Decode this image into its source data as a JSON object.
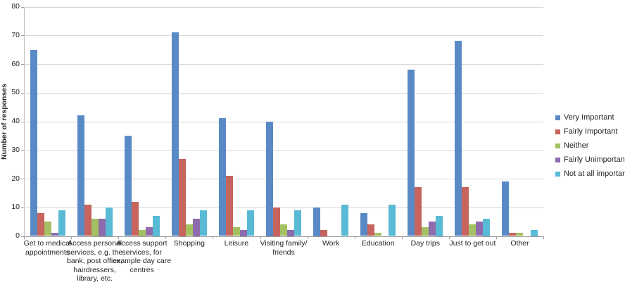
{
  "chart_data": {
    "type": "bar",
    "title": "",
    "ylabel": "Number of responses",
    "xlabel": "",
    "ylim": [
      0,
      80
    ],
    "ytick_step": 10,
    "grid": true,
    "legend_position": "right",
    "categories": [
      "Get to medical appointments",
      "Access personal services, e.g. the bank, post office, hairdressers, library, etc.",
      "Access support services, for example day care centres",
      "Shopping",
      "Leisure",
      "Visiting family/ friends",
      "Work",
      "Education",
      "Day trips",
      "Just to get out",
      "Other"
    ],
    "series": [
      {
        "name": "Very Important",
        "color": "#5a8ac6",
        "values": [
          65,
          42,
          35,
          71,
          41,
          40,
          10,
          8,
          58,
          68,
          19
        ]
      },
      {
        "name": "Fairly Important",
        "color": "#c6645d",
        "values": [
          8,
          11,
          12,
          27,
          21,
          10,
          2,
          4,
          17,
          17,
          1
        ]
      },
      {
        "name": "Neither",
        "color": "#a3c163",
        "values": [
          5,
          6,
          2,
          4,
          3,
          4,
          0,
          1,
          3,
          4,
          1
        ]
      },
      {
        "name": "Fairly Unimportant",
        "color": "#8e6bac",
        "values": [
          1,
          6,
          3,
          6,
          2,
          2,
          0,
          0,
          5,
          5,
          0
        ]
      },
      {
        "name": "Not at all important",
        "color": "#58bad4",
        "values": [
          9,
          10,
          7,
          9,
          9,
          9,
          11,
          11,
          7,
          6,
          2
        ]
      }
    ],
    "colors": {
      "gridline": "#d6d6d6",
      "baseline": "#9a9a9a",
      "axis_line": "#bfbfbf",
      "text": "#262626",
      "background": "#ffffff"
    }
  }
}
